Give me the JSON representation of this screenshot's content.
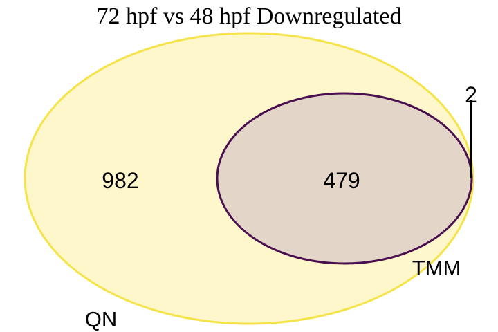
{
  "diagram": {
    "title": "72 hpf vs 48 hpf Downregulated",
    "type": "venn",
    "sets": [
      {
        "name": "QN",
        "fill": "#fff7cc",
        "stroke": "#f5e34a"
      },
      {
        "name": "TMM",
        "fill": "#e3d6c9",
        "stroke": "#4a0f4f"
      }
    ],
    "regions": {
      "qn_only": "982",
      "intersection": "479",
      "tmm_only": "2"
    }
  }
}
